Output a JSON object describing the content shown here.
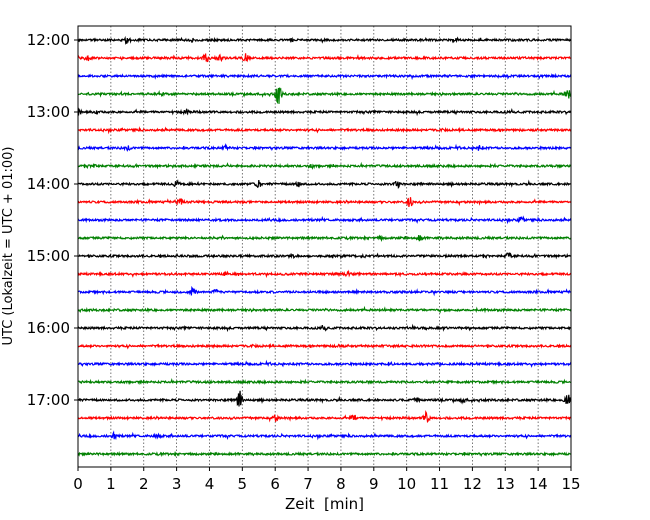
{
  "chart_data": {
    "type": "line",
    "subtype": "helicorder",
    "title": "",
    "xlabel": "Zeit  [min]",
    "ylabel": "UTC (Lokalzeit = UTC + 01:00)",
    "xlim": [
      0,
      15
    ],
    "x_ticks": [
      "0",
      "1",
      "2",
      "3",
      "4",
      "5",
      "6",
      "7",
      "8",
      "9",
      "10",
      "11",
      "12",
      "13",
      "14",
      "15"
    ],
    "y_ticks": [
      "12:00",
      "13:00",
      "14:00",
      "15:00",
      "16:00",
      "17:00"
    ],
    "grid": "vertical dotted",
    "line_colors": [
      "#000000",
      "#ff0000",
      "#0000ff",
      "#008000"
    ],
    "traces": [
      {
        "start": "12:00",
        "events": [
          [
            1.5,
            3
          ],
          [
            3.5,
            1.5
          ],
          [
            11.5,
            1.5
          ]
        ]
      },
      {
        "start": "12:15",
        "events": [
          [
            0.3,
            4
          ],
          [
            3.9,
            4
          ],
          [
            4.3,
            3
          ],
          [
            5.1,
            4
          ]
        ]
      },
      {
        "start": "12:30",
        "events": []
      },
      {
        "start": "12:45",
        "events": [
          [
            2.5,
            1.5
          ],
          [
            6.1,
            10
          ],
          [
            14.9,
            5
          ]
        ]
      },
      {
        "start": "13:00",
        "events": [
          [
            0.0,
            3
          ],
          [
            0.6,
            2
          ],
          [
            3.3,
            2
          ]
        ]
      },
      {
        "start": "13:15",
        "events": []
      },
      {
        "start": "13:30",
        "events": [
          [
            1.5,
            2
          ],
          [
            4.5,
            2
          ],
          [
            12.2,
            2
          ]
        ]
      },
      {
        "start": "13:45",
        "events": [
          [
            0.5,
            2
          ],
          [
            7.1,
            1.5
          ]
        ]
      },
      {
        "start": "14:00",
        "events": [
          [
            3.0,
            3
          ],
          [
            5.5,
            3
          ],
          [
            6.7,
            3
          ],
          [
            9.7,
            4
          ]
        ]
      },
      {
        "start": "14:15",
        "events": [
          [
            3.1,
            3
          ],
          [
            10.1,
            5
          ]
        ]
      },
      {
        "start": "14:30",
        "events": [
          [
            13.5,
            3
          ]
        ]
      },
      {
        "start": "14:45",
        "events": [
          [
            9.2,
            1.5
          ],
          [
            10.4,
            3
          ]
        ]
      },
      {
        "start": "15:00",
        "events": [
          [
            6.5,
            2
          ],
          [
            13.1,
            3
          ]
        ]
      },
      {
        "start": "15:15",
        "events": [
          [
            4.5,
            1.5
          ],
          [
            8.2,
            1.5
          ]
        ]
      },
      {
        "start": "15:30",
        "events": [
          [
            3.5,
            4
          ],
          [
            4.2,
            2
          ]
        ]
      },
      {
        "start": "15:45",
        "events": []
      },
      {
        "start": "16:00",
        "events": [
          [
            7.5,
            1.5
          ]
        ]
      },
      {
        "start": "16:15",
        "events": [
          [
            7.9,
            1.5
          ]
        ]
      },
      {
        "start": "16:30",
        "events": []
      },
      {
        "start": "16:45",
        "events": []
      },
      {
        "start": "17:00",
        "events": [
          [
            4.9,
            10
          ],
          [
            14.9,
            8
          ],
          [
            10.3,
            2
          ],
          [
            11.7,
            2
          ]
        ]
      },
      {
        "start": "17:15",
        "events": [
          [
            6.0,
            3
          ],
          [
            8.4,
            3
          ],
          [
            10.6,
            6
          ]
        ]
      },
      {
        "start": "17:30",
        "events": [
          [
            1.1,
            3
          ],
          [
            2.4,
            2
          ]
        ]
      },
      {
        "start": "17:45",
        "events": []
      }
    ]
  }
}
